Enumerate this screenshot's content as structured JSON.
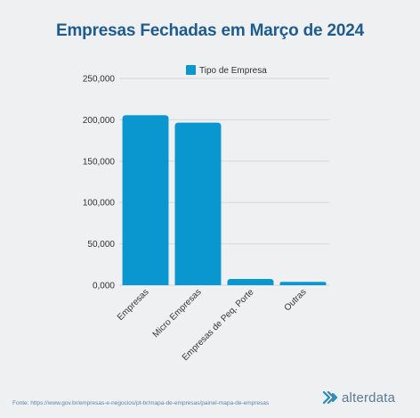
{
  "header": {
    "title": "Empresas Fechadas em Março de 2024"
  },
  "footer": {
    "source": "Fonte: https://www.gov.br/empresas-e-negocios/pt-br/mapa-de-empresas/painel-mapa-de-empresas",
    "logo_text": "alterdata"
  },
  "colors": {
    "bar": "#0a96cf",
    "title": "#1e5c8f",
    "grid": "#d6d9dc",
    "axis_text": "#333333"
  },
  "chart_data": {
    "type": "bar",
    "categories": [
      "Empresas",
      "Micro Empresas",
      "Empresas de Peq. Porte",
      "Outras"
    ],
    "series": [
      {
        "name": "Tipo de Empresa",
        "values": [
          205500,
          196500,
          7500,
          4000
        ]
      }
    ],
    "ylim": [
      0,
      250000
    ],
    "yticks": [
      0,
      50000,
      100000,
      150000,
      200000,
      250000
    ],
    "ytick_labels": [
      "0,000",
      "50,000",
      "100,000",
      "150,000",
      "200,000",
      "250,000"
    ],
    "legend": "top-center",
    "grid": true
  }
}
